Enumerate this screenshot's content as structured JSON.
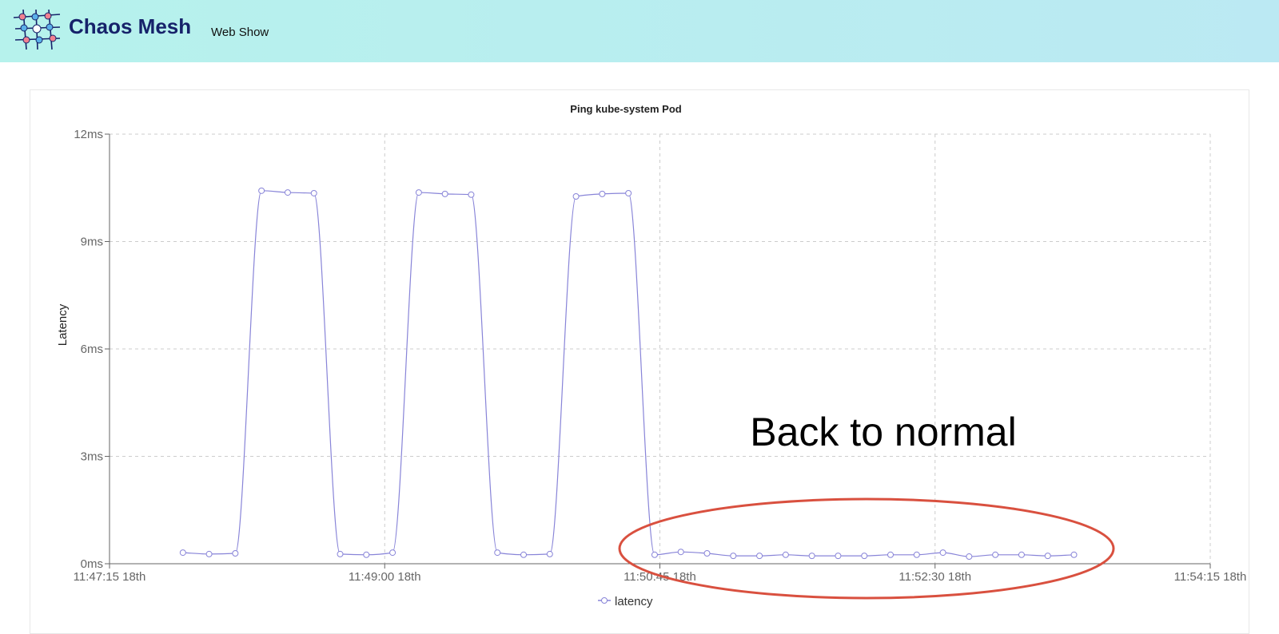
{
  "header": {
    "brand": "Chaos Mesh",
    "subtitle": "Web Show"
  },
  "annotation": {
    "text": "Back to normal",
    "color": "#d9503f"
  },
  "chart_data": {
    "type": "line",
    "title": "Ping kube-system Pod",
    "ylabel": "Latency",
    "xlabel": "",
    "ylim": [
      0,
      12
    ],
    "yticks": [
      "0ms",
      "3ms",
      "6ms",
      "9ms",
      "12ms"
    ],
    "xticks": [
      "11:47:15 18th",
      "11:49:00 18th",
      "11:50:45 18th",
      "11:52:30 18th",
      "11:54:15 18th"
    ],
    "xlim": [
      "11:47:15",
      "11:54:15"
    ],
    "grid": true,
    "legend": "bottom",
    "color": "#8884d8",
    "series": [
      {
        "name": "latency",
        "x": [
          "11:47:43",
          "11:47:53",
          "11:48:03",
          "11:48:13",
          "11:48:23",
          "11:48:33",
          "11:48:43",
          "11:48:53",
          "11:49:03",
          "11:49:13",
          "11:49:23",
          "11:49:33",
          "11:49:43",
          "11:49:53",
          "11:50:03",
          "11:50:13",
          "11:50:23",
          "11:50:33",
          "11:50:43",
          "11:50:53",
          "11:51:03",
          "11:51:13",
          "11:51:23",
          "11:51:33",
          "11:51:43",
          "11:51:53",
          "11:52:03",
          "11:52:13",
          "11:52:23",
          "11:52:33",
          "11:52:43",
          "11:52:53",
          "11:53:03",
          "11:53:13",
          "11:53:23"
        ],
        "values": [
          0.31,
          0.27,
          0.29,
          10.42,
          10.37,
          10.35,
          0.27,
          0.25,
          0.31,
          10.37,
          10.33,
          10.31,
          0.31,
          0.25,
          0.27,
          10.26,
          10.33,
          10.35,
          0.25,
          0.33,
          0.29,
          0.22,
          0.22,
          0.25,
          0.22,
          0.22,
          0.22,
          0.25,
          0.25,
          0.31,
          0.2,
          0.25,
          0.25,
          0.22,
          0.25
        ]
      }
    ]
  }
}
